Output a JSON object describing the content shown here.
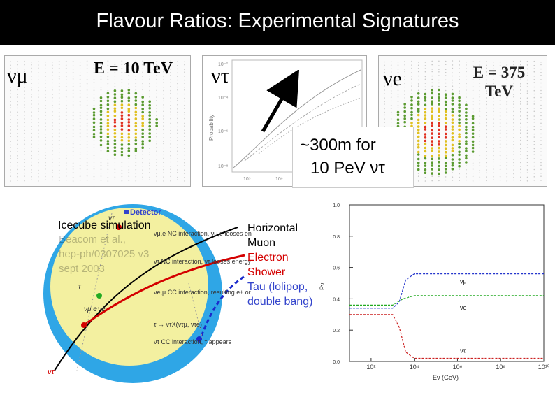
{
  "slide": {
    "title": "Flavour Ratios: Experimental Signatures"
  },
  "panels": {
    "numu": {
      "label": "νμ",
      "energy": "E = 10 TeV"
    },
    "nutau": {
      "label": "ντ",
      "axis_label": "Probability",
      "yticks": [
        "10⁻²",
        "10⁻⁴",
        "10⁻⁶",
        "10⁻⁸"
      ],
      "xticks": [
        "10⁵",
        "10⁶"
      ]
    },
    "nue": {
      "label": "νe",
      "energy": "E = 375 TeV"
    },
    "callout": {
      "line1": "~300m for",
      "line2": "10 PeV ντ"
    }
  },
  "diagram": {
    "detector_legend": "Detector",
    "annotations": [
      "νμ,e NC interaction, νμ,e looses energy",
      "ντ NC interaction, ντ looses energy",
      "νe,μ CC interaction, resulting e± or μ± disappears",
      "τ → ντX(ντμ, ντe)",
      "ντ CC interaction, τ appears"
    ],
    "sim_title": "Icecube simulation",
    "citation": [
      "Beacom et al.,",
      "hep-ph/0307025 v3",
      "sept 2003"
    ],
    "labels": {
      "nu_tau": "ντ",
      "nu_mu_e": "νμ,e",
      "tau": "τ",
      "nu_e": "νe",
      "nu_tau_bottom": "ντ"
    }
  },
  "legend": {
    "horizontal": "Horizontal",
    "muon": "Muon",
    "electron": "Electron",
    "shower": "Shower",
    "tau": "Tau (lolipop,",
    "double_bang": "double bang)"
  },
  "colors": {
    "muon": "#000000",
    "electron": "#d40000",
    "tau": "#3344cc",
    "green": "#22aa22"
  },
  "chart_data": {
    "type": "line",
    "xscale": "log",
    "xlabel": "Eν (GeV)",
    "ylabel": "Pν",
    "xlim": [
      10,
      10000000000
    ],
    "ylim": [
      0.0,
      1.0
    ],
    "xticks": [
      "10²",
      "10⁴",
      "10⁶",
      "10⁸",
      "10¹⁰"
    ],
    "yticks": [
      "0.0",
      "0.2",
      "0.4",
      "0.6",
      "0.8",
      "1.0"
    ],
    "series": [
      {
        "name": "νμ",
        "color": "#2233cc",
        "x": [
          10,
          1000,
          2000,
          4000,
          10000,
          100000,
          10000000000
        ],
        "y": [
          0.34,
          0.34,
          0.38,
          0.52,
          0.56,
          0.56,
          0.56
        ]
      },
      {
        "name": "νe",
        "color": "#22aa22",
        "x": [
          10,
          1000,
          3000,
          10000,
          100000,
          10000000000
        ],
        "y": [
          0.36,
          0.36,
          0.4,
          0.42,
          0.42,
          0.42
        ]
      },
      {
        "name": "ντ",
        "color": "#cc2222",
        "x": [
          10,
          1000,
          2000,
          4000,
          10000,
          100000,
          10000000000
        ],
        "y": [
          0.3,
          0.3,
          0.22,
          0.06,
          0.02,
          0.02,
          0.02
        ]
      }
    ]
  }
}
